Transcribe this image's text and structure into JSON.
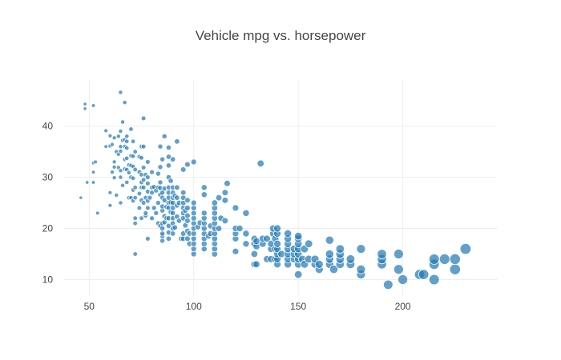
{
  "colors": {
    "marker": "#1f77b4",
    "marker_outline": "#ffffff",
    "grid": "#eeeeee",
    "text": "#444444"
  },
  "chart_data": {
    "type": "scatter",
    "title": "Vehicle mpg vs. horsepower",
    "xlabel": "",
    "ylabel": "",
    "xlim": [
      38,
      245
    ],
    "ylim": [
      6.8,
      49
    ],
    "x_ticks": [
      50,
      100,
      150,
      200
    ],
    "y_ticks": [
      10,
      20,
      30,
      40
    ],
    "grid": true,
    "legend": "none",
    "marker_size_encodes": "horsepower",
    "marker_opacity": 0.7,
    "points": [
      {
        "x": 46,
        "y": 26
      },
      {
        "x": 48,
        "y": 43.4
      },
      {
        "x": 48,
        "y": 44.3
      },
      {
        "x": 49,
        "y": 29
      },
      {
        "x": 52,
        "y": 29
      },
      {
        "x": 52,
        "y": 31
      },
      {
        "x": 52,
        "y": 32.8
      },
      {
        "x": 52,
        "y": 44
      },
      {
        "x": 53,
        "y": 33
      },
      {
        "x": 54,
        "y": 23
      },
      {
        "x": 58,
        "y": 36
      },
      {
        "x": 58,
        "y": 39.1
      },
      {
        "x": 60,
        "y": 24.5
      },
      {
        "x": 60,
        "y": 27
      },
      {
        "x": 60,
        "y": 36.1
      },
      {
        "x": 60,
        "y": 38.1
      },
      {
        "x": 61,
        "y": 31
      },
      {
        "x": 61,
        "y": 36.4
      },
      {
        "x": 62,
        "y": 29.9
      },
      {
        "x": 62,
        "y": 32
      },
      {
        "x": 62,
        "y": 33
      },
      {
        "x": 62,
        "y": 37.7
      },
      {
        "x": 63,
        "y": 26.5
      },
      {
        "x": 63,
        "y": 35
      },
      {
        "x": 64,
        "y": 31.9
      },
      {
        "x": 64,
        "y": 34.5
      },
      {
        "x": 64,
        "y": 38
      },
      {
        "x": 65,
        "y": 25
      },
      {
        "x": 65,
        "y": 30
      },
      {
        "x": 65,
        "y": 31.3
      },
      {
        "x": 65,
        "y": 35.1
      },
      {
        "x": 65,
        "y": 36
      },
      {
        "x": 65,
        "y": 39
      },
      {
        "x": 65,
        "y": 46.6
      },
      {
        "x": 66,
        "y": 28.4
      },
      {
        "x": 66,
        "y": 37.2
      },
      {
        "x": 66,
        "y": 40.8
      },
      {
        "x": 67,
        "y": 31.6
      },
      {
        "x": 67,
        "y": 33.5
      },
      {
        "x": 67,
        "y": 36
      },
      {
        "x": 67,
        "y": 37.3
      },
      {
        "x": 67,
        "y": 44.6
      },
      {
        "x": 68,
        "y": 29
      },
      {
        "x": 68,
        "y": 31.5
      },
      {
        "x": 68,
        "y": 33.7
      },
      {
        "x": 68,
        "y": 35.7
      },
      {
        "x": 68,
        "y": 37
      },
      {
        "x": 68,
        "y": 38
      },
      {
        "x": 69,
        "y": 26
      },
      {
        "x": 69,
        "y": 30.9
      },
      {
        "x": 69,
        "y": 32.4
      },
      {
        "x": 70,
        "y": 26
      },
      {
        "x": 70,
        "y": 30
      },
      {
        "x": 70,
        "y": 32.3
      },
      {
        "x": 70,
        "y": 34.2
      },
      {
        "x": 70,
        "y": 39.4
      },
      {
        "x": 71,
        "y": 25.4
      },
      {
        "x": 71,
        "y": 27.5
      },
      {
        "x": 71,
        "y": 29.8
      },
      {
        "x": 71,
        "y": 32.1
      },
      {
        "x": 71,
        "y": 34.1
      },
      {
        "x": 71,
        "y": 37
      },
      {
        "x": 72,
        "y": 15
      },
      {
        "x": 72,
        "y": 21
      },
      {
        "x": 72,
        "y": 22
      },
      {
        "x": 72,
        "y": 26
      },
      {
        "x": 72,
        "y": 28
      },
      {
        "x": 72,
        "y": 31.5
      },
      {
        "x": 72,
        "y": 35
      },
      {
        "x": 74,
        "y": 24
      },
      {
        "x": 74,
        "y": 26.8
      },
      {
        "x": 74,
        "y": 31
      },
      {
        "x": 74,
        "y": 34
      },
      {
        "x": 75,
        "y": 22
      },
      {
        "x": 75,
        "y": 25.5
      },
      {
        "x": 75,
        "y": 28
      },
      {
        "x": 75,
        "y": 29
      },
      {
        "x": 75,
        "y": 30.5
      },
      {
        "x": 75,
        "y": 33.8
      },
      {
        "x": 75,
        "y": 36
      },
      {
        "x": 76,
        "y": 25
      },
      {
        "x": 76,
        "y": 28
      },
      {
        "x": 76,
        "y": 29.5
      },
      {
        "x": 76,
        "y": 31.9
      },
      {
        "x": 76,
        "y": 36
      },
      {
        "x": 76,
        "y": 41.5
      },
      {
        "x": 77,
        "y": 22.5
      },
      {
        "x": 77,
        "y": 23
      },
      {
        "x": 77,
        "y": 26
      },
      {
        "x": 77,
        "y": 30.5
      },
      {
        "x": 78,
        "y": 18
      },
      {
        "x": 78,
        "y": 24
      },
      {
        "x": 78,
        "y": 25.4
      },
      {
        "x": 78,
        "y": 27.2
      },
      {
        "x": 78,
        "y": 28.8
      },
      {
        "x": 78,
        "y": 30
      },
      {
        "x": 78,
        "y": 33
      },
      {
        "x": 79,
        "y": 26
      },
      {
        "x": 80,
        "y": 22
      },
      {
        "x": 80,
        "y": 27
      },
      {
        "x": 80,
        "y": 28
      },
      {
        "x": 80,
        "y": 31
      },
      {
        "x": 81,
        "y": 24
      },
      {
        "x": 81,
        "y": 28.1
      },
      {
        "x": 82,
        "y": 23
      },
      {
        "x": 82,
        "y": 27.4
      },
      {
        "x": 83,
        "y": 21
      },
      {
        "x": 83,
        "y": 25
      },
      {
        "x": 83,
        "y": 28
      },
      {
        "x": 83,
        "y": 30.7
      },
      {
        "x": 84,
        "y": 20.5
      },
      {
        "x": 84,
        "y": 26.6
      },
      {
        "x": 84,
        "y": 27.9
      },
      {
        "x": 84,
        "y": 29
      },
      {
        "x": 84,
        "y": 32
      },
      {
        "x": 84,
        "y": 36
      },
      {
        "x": 85,
        "y": 17.6
      },
      {
        "x": 85,
        "y": 18.5
      },
      {
        "x": 85,
        "y": 19
      },
      {
        "x": 85,
        "y": 20
      },
      {
        "x": 85,
        "y": 21
      },
      {
        "x": 85,
        "y": 23.5
      },
      {
        "x": 85,
        "y": 24.3
      },
      {
        "x": 85,
        "y": 26
      },
      {
        "x": 85,
        "y": 27
      },
      {
        "x": 85,
        "y": 33.5
      },
      {
        "x": 86,
        "y": 21.2
      },
      {
        "x": 86,
        "y": 22.4
      },
      {
        "x": 86,
        "y": 25.5
      },
      {
        "x": 86,
        "y": 27.8
      },
      {
        "x": 86,
        "y": 38
      },
      {
        "x": 87,
        "y": 22
      },
      {
        "x": 87,
        "y": 24.2
      },
      {
        "x": 88,
        "y": 18
      },
      {
        "x": 88,
        "y": 19.2
      },
      {
        "x": 88,
        "y": 20.5
      },
      {
        "x": 88,
        "y": 22
      },
      {
        "x": 88,
        "y": 24
      },
      {
        "x": 88,
        "y": 25
      },
      {
        "x": 88,
        "y": 26
      },
      {
        "x": 88,
        "y": 27
      },
      {
        "x": 88,
        "y": 28
      },
      {
        "x": 88,
        "y": 30
      },
      {
        "x": 88,
        "y": 32.3
      },
      {
        "x": 88,
        "y": 34
      },
      {
        "x": 88,
        "y": 35.8
      },
      {
        "x": 89,
        "y": 23.2
      },
      {
        "x": 89,
        "y": 25.1
      },
      {
        "x": 89,
        "y": 29.3
      },
      {
        "x": 90,
        "y": 19
      },
      {
        "x": 90,
        "y": 20
      },
      {
        "x": 90,
        "y": 21
      },
      {
        "x": 90,
        "y": 22
      },
      {
        "x": 90,
        "y": 23
      },
      {
        "x": 90,
        "y": 24
      },
      {
        "x": 90,
        "y": 25
      },
      {
        "x": 90,
        "y": 26
      },
      {
        "x": 90,
        "y": 27
      },
      {
        "x": 90,
        "y": 28
      },
      {
        "x": 90,
        "y": 33.5
      },
      {
        "x": 91,
        "y": 20.2
      },
      {
        "x": 91,
        "y": 26.4
      },
      {
        "x": 92,
        "y": 22.3
      },
      {
        "x": 92,
        "y": 24.5
      },
      {
        "x": 92,
        "y": 26
      },
      {
        "x": 92,
        "y": 28
      },
      {
        "x": 92,
        "y": 37
      },
      {
        "x": 93,
        "y": 21.5
      },
      {
        "x": 93,
        "y": 25
      },
      {
        "x": 94,
        "y": 18
      },
      {
        "x": 95,
        "y": 18
      },
      {
        "x": 95,
        "y": 19
      },
      {
        "x": 95,
        "y": 22
      },
      {
        "x": 95,
        "y": 23
      },
      {
        "x": 95,
        "y": 24
      },
      {
        "x": 95,
        "y": 25
      },
      {
        "x": 95,
        "y": 26
      },
      {
        "x": 95,
        "y": 27
      },
      {
        "x": 95,
        "y": 31.5
      },
      {
        "x": 96,
        "y": 20.6
      },
      {
        "x": 96,
        "y": 23.5
      },
      {
        "x": 97,
        "y": 18
      },
      {
        "x": 97,
        "y": 19.5
      },
      {
        "x": 97,
        "y": 21.5
      },
      {
        "x": 97,
        "y": 22.5
      },
      {
        "x": 97,
        "y": 24
      },
      {
        "x": 97,
        "y": 25.5
      },
      {
        "x": 97,
        "y": 32.5
      },
      {
        "x": 98,
        "y": 17
      },
      {
        "x": 98,
        "y": 19
      },
      {
        "x": 100,
        "y": 15
      },
      {
        "x": 100,
        "y": 16
      },
      {
        "x": 100,
        "y": 17
      },
      {
        "x": 100,
        "y": 18
      },
      {
        "x": 100,
        "y": 19
      },
      {
        "x": 100,
        "y": 20
      },
      {
        "x": 100,
        "y": 21
      },
      {
        "x": 100,
        "y": 22
      },
      {
        "x": 100,
        "y": 23
      },
      {
        "x": 100,
        "y": 24
      },
      {
        "x": 100,
        "y": 25
      },
      {
        "x": 100,
        "y": 33
      },
      {
        "x": 102,
        "y": 20.3
      },
      {
        "x": 103,
        "y": 21.1
      },
      {
        "x": 105,
        "y": 16
      },
      {
        "x": 105,
        "y": 17
      },
      {
        "x": 105,
        "y": 18
      },
      {
        "x": 105,
        "y": 19
      },
      {
        "x": 105,
        "y": 20
      },
      {
        "x": 105,
        "y": 21
      },
      {
        "x": 105,
        "y": 22
      },
      {
        "x": 105,
        "y": 23
      },
      {
        "x": 105,
        "y": 26.6
      },
      {
        "x": 105,
        "y": 28
      },
      {
        "x": 107,
        "y": 18.5
      },
      {
        "x": 108,
        "y": 19
      },
      {
        "x": 108,
        "y": 20.5
      },
      {
        "x": 110,
        "y": 15
      },
      {
        "x": 110,
        "y": 16
      },
      {
        "x": 110,
        "y": 17
      },
      {
        "x": 110,
        "y": 18
      },
      {
        "x": 110,
        "y": 19
      },
      {
        "x": 110,
        "y": 20
      },
      {
        "x": 110,
        "y": 21
      },
      {
        "x": 110,
        "y": 22
      },
      {
        "x": 110,
        "y": 23
      },
      {
        "x": 110,
        "y": 24
      },
      {
        "x": 110,
        "y": 25
      },
      {
        "x": 112,
        "y": 20
      },
      {
        "x": 112,
        "y": 26
      },
      {
        "x": 113,
        "y": 22
      },
      {
        "x": 115,
        "y": 21.5
      },
      {
        "x": 115,
        "y": 25.5
      },
      {
        "x": 115,
        "y": 27
      },
      {
        "x": 116,
        "y": 28.8
      },
      {
        "x": 120,
        "y": 15.5
      },
      {
        "x": 120,
        "y": 18
      },
      {
        "x": 120,
        "y": 19
      },
      {
        "x": 120,
        "y": 20
      },
      {
        "x": 120,
        "y": 24
      },
      {
        "x": 122,
        "y": 20
      },
      {
        "x": 125,
        "y": 17
      },
      {
        "x": 125,
        "y": 19
      },
      {
        "x": 125,
        "y": 23
      },
      {
        "x": 129,
        "y": 13
      },
      {
        "x": 129,
        "y": 15
      },
      {
        "x": 129,
        "y": 17
      },
      {
        "x": 129,
        "y": 18
      },
      {
        "x": 130,
        "y": 13
      },
      {
        "x": 130,
        "y": 16.5
      },
      {
        "x": 130,
        "y": 17.5
      },
      {
        "x": 132,
        "y": 32.7
      },
      {
        "x": 133,
        "y": 17
      },
      {
        "x": 133,
        "y": 18
      },
      {
        "x": 135,
        "y": 14
      },
      {
        "x": 135,
        "y": 18
      },
      {
        "x": 137,
        "y": 14
      },
      {
        "x": 137,
        "y": 16
      },
      {
        "x": 137,
        "y": 17
      },
      {
        "x": 138,
        "y": 19
      },
      {
        "x": 138,
        "y": 20
      },
      {
        "x": 139,
        "y": 14
      },
      {
        "x": 139,
        "y": 16
      },
      {
        "x": 139,
        "y": 18
      },
      {
        "x": 140,
        "y": 13
      },
      {
        "x": 140,
        "y": 14
      },
      {
        "x": 140,
        "y": 15
      },
      {
        "x": 140,
        "y": 16
      },
      {
        "x": 140,
        "y": 17
      },
      {
        "x": 140,
        "y": 19
      },
      {
        "x": 140,
        "y": 20
      },
      {
        "x": 142,
        "y": 15
      },
      {
        "x": 145,
        "y": 13
      },
      {
        "x": 145,
        "y": 14
      },
      {
        "x": 145,
        "y": 15
      },
      {
        "x": 145,
        "y": 16
      },
      {
        "x": 145,
        "y": 17
      },
      {
        "x": 145,
        "y": 18
      },
      {
        "x": 145,
        "y": 19
      },
      {
        "x": 148,
        "y": 14
      },
      {
        "x": 148,
        "y": 15
      },
      {
        "x": 148,
        "y": 16
      },
      {
        "x": 150,
        "y": 11
      },
      {
        "x": 150,
        "y": 13
      },
      {
        "x": 150,
        "y": 14
      },
      {
        "x": 150,
        "y": 15
      },
      {
        "x": 150,
        "y": 16
      },
      {
        "x": 150,
        "y": 17
      },
      {
        "x": 150,
        "y": 18
      },
      {
        "x": 150,
        "y": 18.5
      },
      {
        "x": 152,
        "y": 14
      },
      {
        "x": 153,
        "y": 13
      },
      {
        "x": 153,
        "y": 16
      },
      {
        "x": 155,
        "y": 14
      },
      {
        "x": 155,
        "y": 17
      },
      {
        "x": 158,
        "y": 13
      },
      {
        "x": 158,
        "y": 14
      },
      {
        "x": 160,
        "y": 12
      },
      {
        "x": 160,
        "y": 13
      },
      {
        "x": 165,
        "y": 13
      },
      {
        "x": 165,
        "y": 14
      },
      {
        "x": 165,
        "y": 15
      },
      {
        "x": 165,
        "y": 17.7
      },
      {
        "x": 167,
        "y": 12
      },
      {
        "x": 170,
        "y": 13
      },
      {
        "x": 170,
        "y": 14
      },
      {
        "x": 170,
        "y": 15
      },
      {
        "x": 170,
        "y": 16
      },
      {
        "x": 175,
        "y": 13
      },
      {
        "x": 175,
        "y": 14
      },
      {
        "x": 180,
        "y": 11
      },
      {
        "x": 180,
        "y": 12
      },
      {
        "x": 180,
        "y": 16
      },
      {
        "x": 190,
        "y": 13
      },
      {
        "x": 190,
        "y": 14
      },
      {
        "x": 190,
        "y": 15
      },
      {
        "x": 193,
        "y": 9
      },
      {
        "x": 198,
        "y": 12
      },
      {
        "x": 198,
        "y": 15
      },
      {
        "x": 200,
        "y": 10
      },
      {
        "x": 208,
        "y": 11
      },
      {
        "x": 210,
        "y": 11
      },
      {
        "x": 215,
        "y": 10
      },
      {
        "x": 215,
        "y": 13
      },
      {
        "x": 215,
        "y": 14
      },
      {
        "x": 220,
        "y": 14
      },
      {
        "x": 225,
        "y": 12
      },
      {
        "x": 225,
        "y": 14
      },
      {
        "x": 230,
        "y": 16
      }
    ]
  }
}
